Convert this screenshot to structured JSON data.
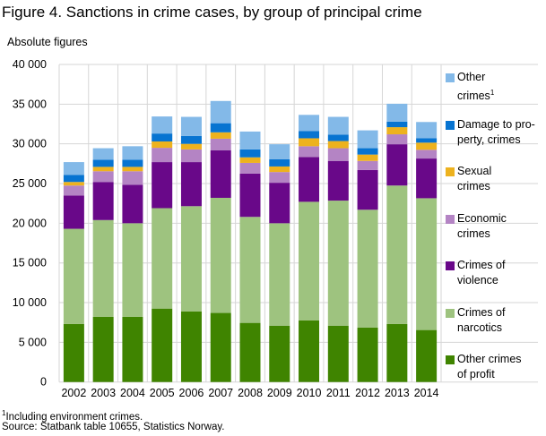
{
  "title": "Figure 4. Sanctions in crime cases, by group of principal crime",
  "footnote": "Including environment crimes.",
  "footnote_mark": "1",
  "source": "Source: Statbank table 10655, Statistics Norway.",
  "chart_data": {
    "type": "bar",
    "stacked": true,
    "ylabel": "Absolute figures",
    "ylim": [
      0,
      40000
    ],
    "yticks": [
      0,
      5000,
      10000,
      15000,
      20000,
      25000,
      30000,
      35000,
      40000
    ],
    "ytick_labels": [
      "0",
      "5 000",
      "10 000",
      "15 000",
      "20 000",
      "25 000",
      "30 000",
      "35 000",
      "40 000"
    ],
    "grid": true,
    "legend_placement": "right",
    "categories": [
      "2002",
      "2003",
      "2004",
      "2005",
      "2006",
      "2007",
      "2008",
      "2009",
      "2010",
      "2011",
      "2012",
      "2013",
      "2014"
    ],
    "series": [
      {
        "name": "Other crimes of profit",
        "color": "#3f8400",
        "values": [
          7300,
          8200,
          8200,
          9250,
          8900,
          8700,
          7450,
          7100,
          7750,
          7100,
          6850,
          7300,
          6550
        ]
      },
      {
        "name": "Crimes of narcotics",
        "color": "#9ec37f",
        "values": [
          12000,
          12200,
          11800,
          12650,
          13250,
          14500,
          13350,
          12900,
          14950,
          15750,
          14850,
          17450,
          16600
        ]
      },
      {
        "name": "Crimes of violence",
        "color": "#690889",
        "values": [
          4200,
          4800,
          4850,
          5800,
          5550,
          6000,
          5450,
          5100,
          5650,
          5000,
          5000,
          5200,
          5000
        ]
      },
      {
        "name": "Economic crimes",
        "color": "#b484c4",
        "values": [
          1250,
          1350,
          1700,
          1800,
          1600,
          1450,
          1350,
          1350,
          1350,
          1600,
          1150,
          1250,
          1100
        ]
      },
      {
        "name": "Sexual crimes",
        "color": "#edb21e",
        "values": [
          450,
          550,
          550,
          800,
          700,
          800,
          700,
          700,
          1000,
          900,
          800,
          900,
          900
        ]
      },
      {
        "name": "Damage to property, crimes",
        "color": "#0774d1",
        "values": [
          900,
          900,
          900,
          1000,
          1000,
          1150,
          1000,
          900,
          900,
          800,
          800,
          700,
          550
        ]
      },
      {
        "name": "Other crimes",
        "color": "#83b9e8",
        "values": [
          1600,
          1450,
          1700,
          2150,
          2400,
          2800,
          2250,
          1900,
          2050,
          2250,
          2250,
          2250,
          2050
        ]
      }
    ],
    "legend_lines": [
      [
        "Other",
        "crimes"
      ],
      [
        "Damage to pro-",
        "perty, crimes"
      ],
      [
        "Sexual",
        "crimes"
      ],
      [
        "Economic",
        "crimes"
      ],
      [
        "Crimes of",
        "violence"
      ],
      [
        "Crimes of",
        "narcotics"
      ],
      [
        "Other crimes",
        "of profit"
      ]
    ]
  }
}
